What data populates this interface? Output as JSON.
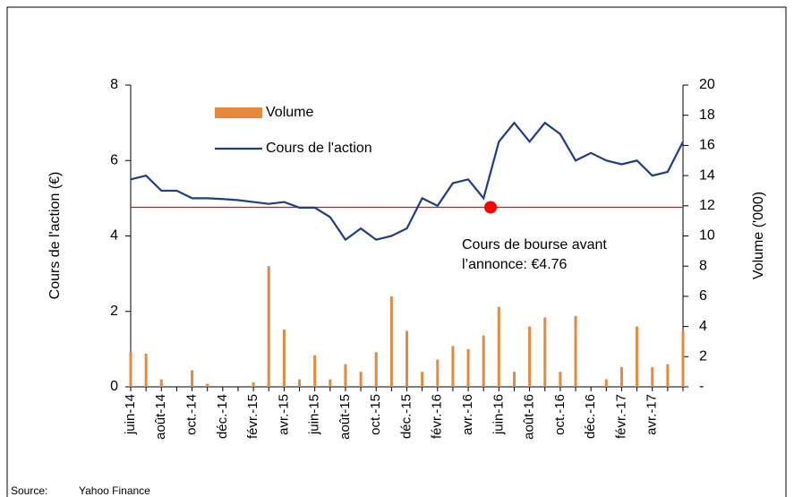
{
  "chart_data": {
    "type": "bar-line",
    "categories": [
      "juin-14",
      null,
      "août-14",
      null,
      "oct.-14",
      null,
      "déc.-14",
      null,
      "févr.-15",
      null,
      "avr.-15",
      null,
      "juin-15",
      null,
      "août-15",
      null,
      "oct.-15",
      null,
      "déc.-15",
      null,
      "févr.-16",
      null,
      "avr.-16",
      null,
      "juin-16",
      null,
      "août-16",
      null,
      "oct.-16",
      null,
      "déc.-16",
      null,
      "févr.-17",
      null,
      "avr.-17",
      null,
      null
    ],
    "series": [
      {
        "name": "Volume",
        "color": "#e8883a",
        "axis": "y2",
        "type": "bar",
        "values": [
          2.3,
          2.2,
          0.5,
          0,
          1.1,
          0.2,
          0,
          0,
          0.3,
          8,
          3.8,
          0.5,
          2.1,
          0.5,
          1.5,
          1.0,
          2.3,
          6.0,
          3.7,
          1.0,
          1.8,
          2.7,
          2.5,
          3.4,
          5.3,
          1.0,
          4.0,
          4.6,
          1.0,
          4.7,
          0,
          0.5,
          1.3,
          4.0,
          1.3,
          1.5,
          3.7
        ]
      },
      {
        "name": "Cours de l'action",
        "color": "#1a3e8c",
        "type": "line",
        "values": [
          5.5,
          5.6,
          5.2,
          5.2,
          5.0,
          5.0,
          4.98,
          4.95,
          4.9,
          4.85,
          4.9,
          4.75,
          4.75,
          4.5,
          3.9,
          4.2,
          3.9,
          4.0,
          4.2,
          5.0,
          4.8,
          5.4,
          5.5,
          5.0,
          6.5,
          7.0,
          6.5,
          7.0,
          6.7,
          6.0,
          6.2,
          6.0,
          5.9,
          6.0,
          5.6,
          5.7,
          6.5
        ]
      }
    ],
    "ylabel": "Cours de l'action (€)",
    "y2label": "Volume ('000)",
    "ylim": [
      0,
      8
    ],
    "yticks": [
      0,
      2,
      4,
      6,
      8
    ],
    "y2lim": [
      0,
      20
    ],
    "y2ticks": [
      {
        "value": 0,
        "label": "-"
      },
      2,
      4,
      6,
      8,
      10,
      12,
      14,
      16,
      18,
      20
    ],
    "reference": {
      "value": 4.76,
      "color": "#ff0000",
      "label": [
        "Cours de bourse avant",
        "l’annonce: €4.76"
      ]
    },
    "legend": "upper left",
    "source": [
      "Source:",
      "Yahoo Finance"
    ]
  }
}
